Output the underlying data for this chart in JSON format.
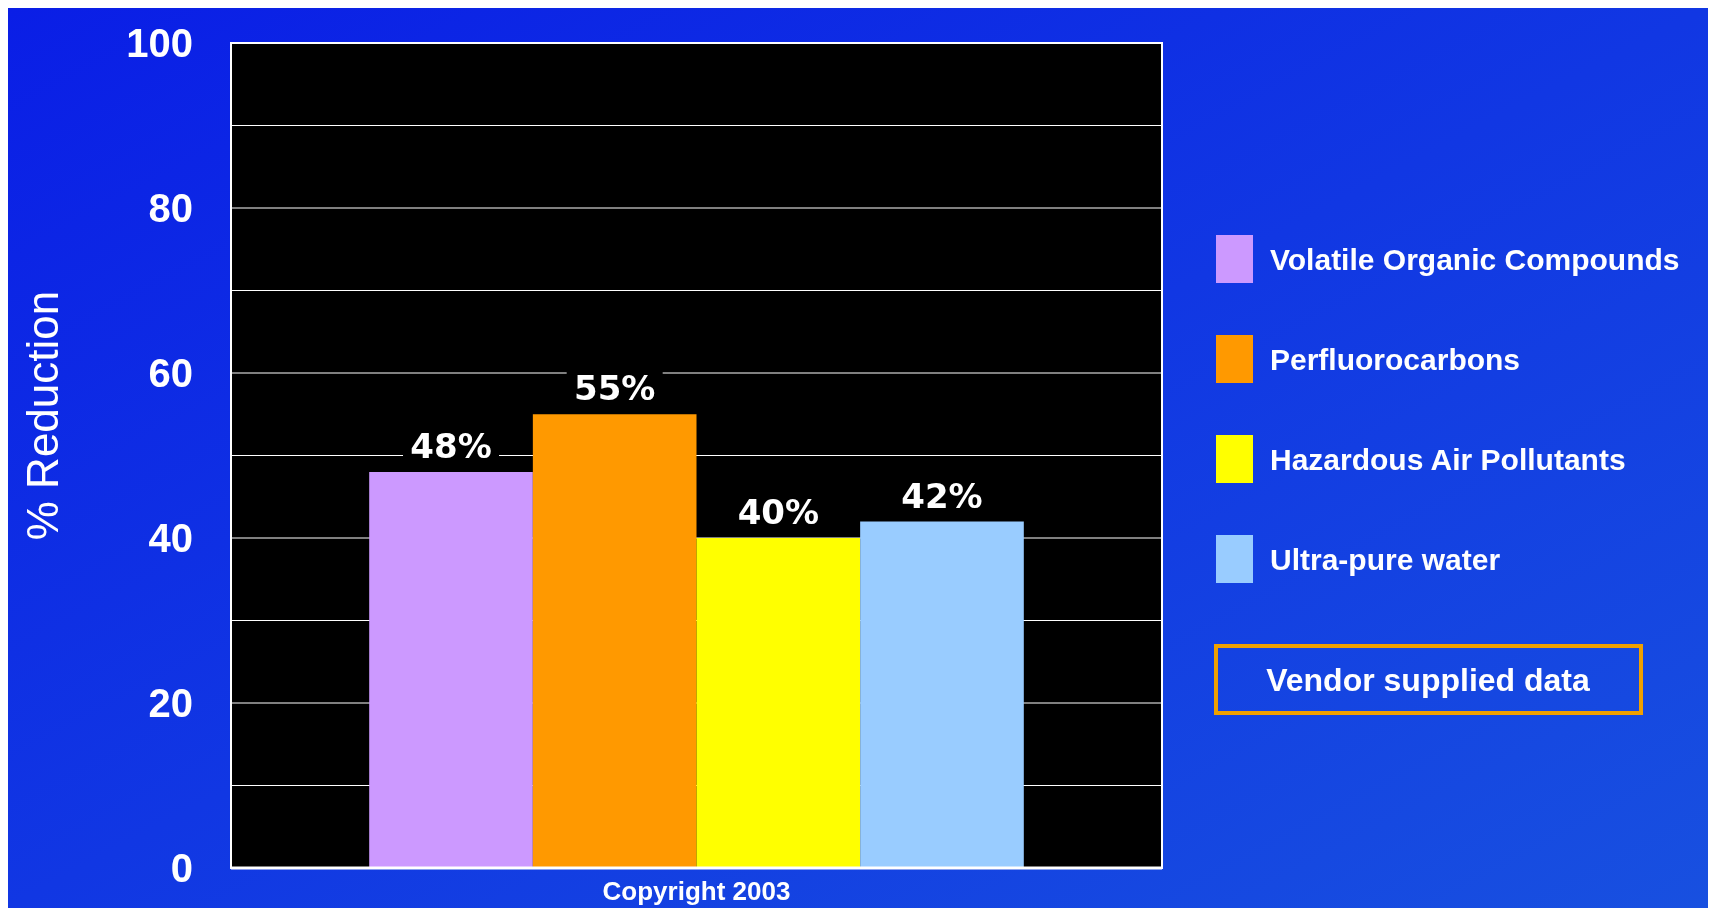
{
  "chart_data": {
    "type": "bar",
    "ylabel": "% Reduction",
    "categories": [
      null
    ],
    "series": [
      {
        "name": "Volatile Organic Compounds",
        "color": "#cc99ff",
        "values": [
          48
        ],
        "value_labels": [
          "48%"
        ]
      },
      {
        "name": "Perfluorocarbons",
        "color": "#ff9900",
        "values": [
          55
        ],
        "value_labels": [
          "55%"
        ]
      },
      {
        "name": "Hazardous Air Pollutants",
        "color": "#ffff00",
        "values": [
          40
        ],
        "value_labels": [
          "40%"
        ]
      },
      {
        "name": "Ultra-pure water",
        "color": "#99ccff",
        "values": [
          42
        ],
        "value_labels": [
          "42%"
        ]
      }
    ],
    "ylim": [
      0,
      100
    ],
    "yticks": [
      0,
      {
        "value": 10,
        "label": null
      },
      20,
      {
        "value": 30,
        "label": null
      },
      40,
      {
        "value": 50,
        "label": null
      },
      60,
      {
        "value": 70,
        "label": null
      },
      80,
      {
        "value": 90,
        "label": null
      },
      100
    ],
    "grid": "y",
    "legend": "right",
    "tick_labels": "y",
    "annotations": [
      "Vendor supplied data",
      "Copyright 2003"
    ]
  }
}
